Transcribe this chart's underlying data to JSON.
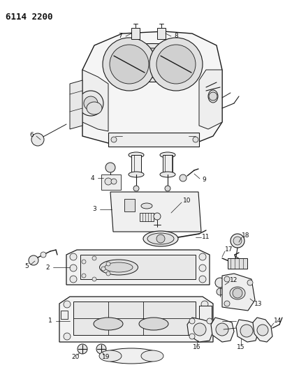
{
  "title": "6114 2200",
  "bg_color": "#ffffff",
  "line_color": "#1a1a1a",
  "label_color": "#111111",
  "label_fontsize": 6.5,
  "fig_width": 4.08,
  "fig_height": 5.33,
  "dpi": 100
}
